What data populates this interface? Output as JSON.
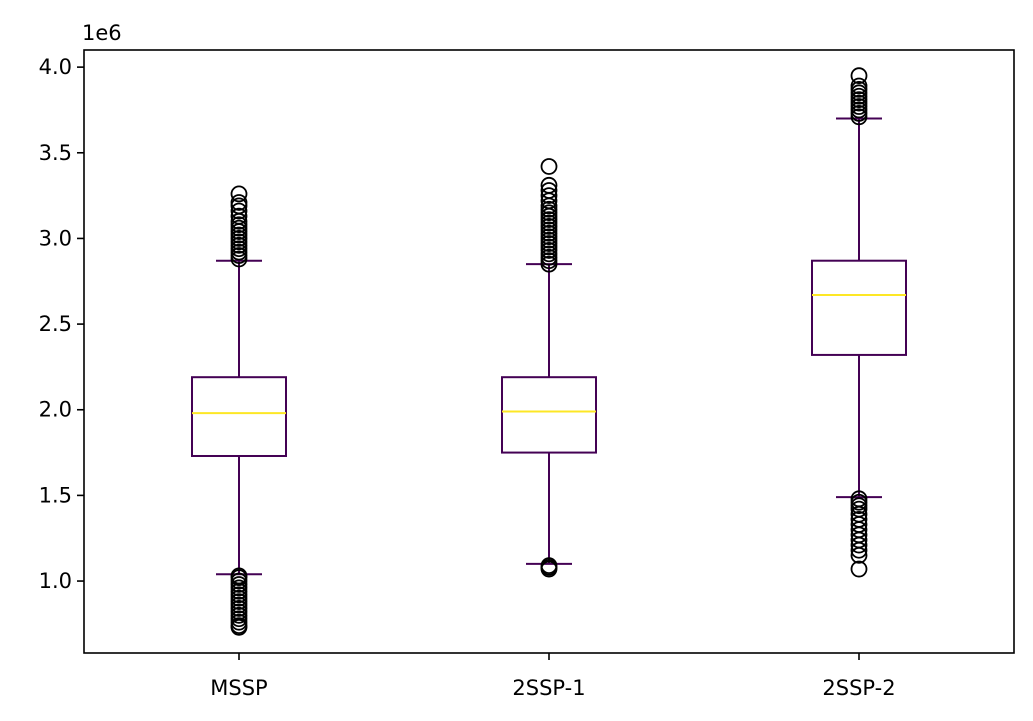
{
  "chart_data": {
    "type": "box",
    "title": "",
    "xlabel": "",
    "ylabel": "",
    "y_scale_label": "1e6",
    "ylim": [
      0.58,
      4.1
    ],
    "grid": false,
    "categories": [
      "MSSP",
      "2SSP-1",
      "2SSP-2"
    ],
    "y_ticks": [
      {
        "value": 1.0,
        "label": "1.0"
      },
      {
        "value": 1.5,
        "label": "1.5"
      },
      {
        "value": 2.0,
        "label": "2.0"
      },
      {
        "value": 2.5,
        "label": "2.5"
      },
      {
        "value": 3.0,
        "label": "3.0"
      },
      {
        "value": 3.5,
        "label": "3.5"
      },
      {
        "value": 4.0,
        "label": "4.0"
      }
    ],
    "boxes": [
      {
        "category": "MSSP",
        "whisker_low": 1.04,
        "q1": 1.73,
        "median": 1.98,
        "q3": 2.19,
        "whisker_high": 2.87,
        "outliers_low": [
          0.73,
          0.74,
          0.76,
          0.78,
          0.8,
          0.82,
          0.84,
          0.86,
          0.88,
          0.9,
          0.92,
          0.94,
          0.96,
          0.98,
          1.0,
          1.02,
          1.03
        ],
        "outliers_high": [
          2.88,
          2.9,
          2.92,
          2.94,
          2.96,
          2.98,
          3.0,
          3.02,
          3.04,
          3.06,
          3.08,
          3.1,
          3.13,
          3.16,
          3.19,
          3.21,
          3.26
        ]
      },
      {
        "category": "2SSP-1",
        "whisker_low": 1.1,
        "q1": 1.75,
        "median": 1.99,
        "q3": 2.19,
        "whisker_high": 2.85,
        "outliers_low": [
          1.07,
          1.08,
          1.09
        ],
        "outliers_high": [
          2.85,
          2.87,
          2.89,
          2.91,
          2.93,
          2.95,
          2.97,
          2.99,
          3.01,
          3.03,
          3.05,
          3.07,
          3.09,
          3.11,
          3.13,
          3.15,
          3.17,
          3.19,
          3.22,
          3.25,
          3.28,
          3.31,
          3.42
        ]
      },
      {
        "category": "2SSP-2",
        "whisker_low": 1.49,
        "q1": 2.32,
        "median": 2.67,
        "q3": 2.87,
        "whisker_high": 3.7,
        "outliers_low": [
          1.07,
          1.15,
          1.18,
          1.21,
          1.24,
          1.27,
          1.3,
          1.33,
          1.36,
          1.39,
          1.42,
          1.44,
          1.46,
          1.48
        ],
        "outliers_high": [
          3.71,
          3.73,
          3.75,
          3.77,
          3.79,
          3.81,
          3.83,
          3.85,
          3.87,
          3.89,
          3.95
        ]
      }
    ],
    "colors": {
      "box": "#440154",
      "median": "#fde725",
      "outlier": "#000000",
      "axis": "#000000",
      "background": "#ffffff"
    }
  }
}
